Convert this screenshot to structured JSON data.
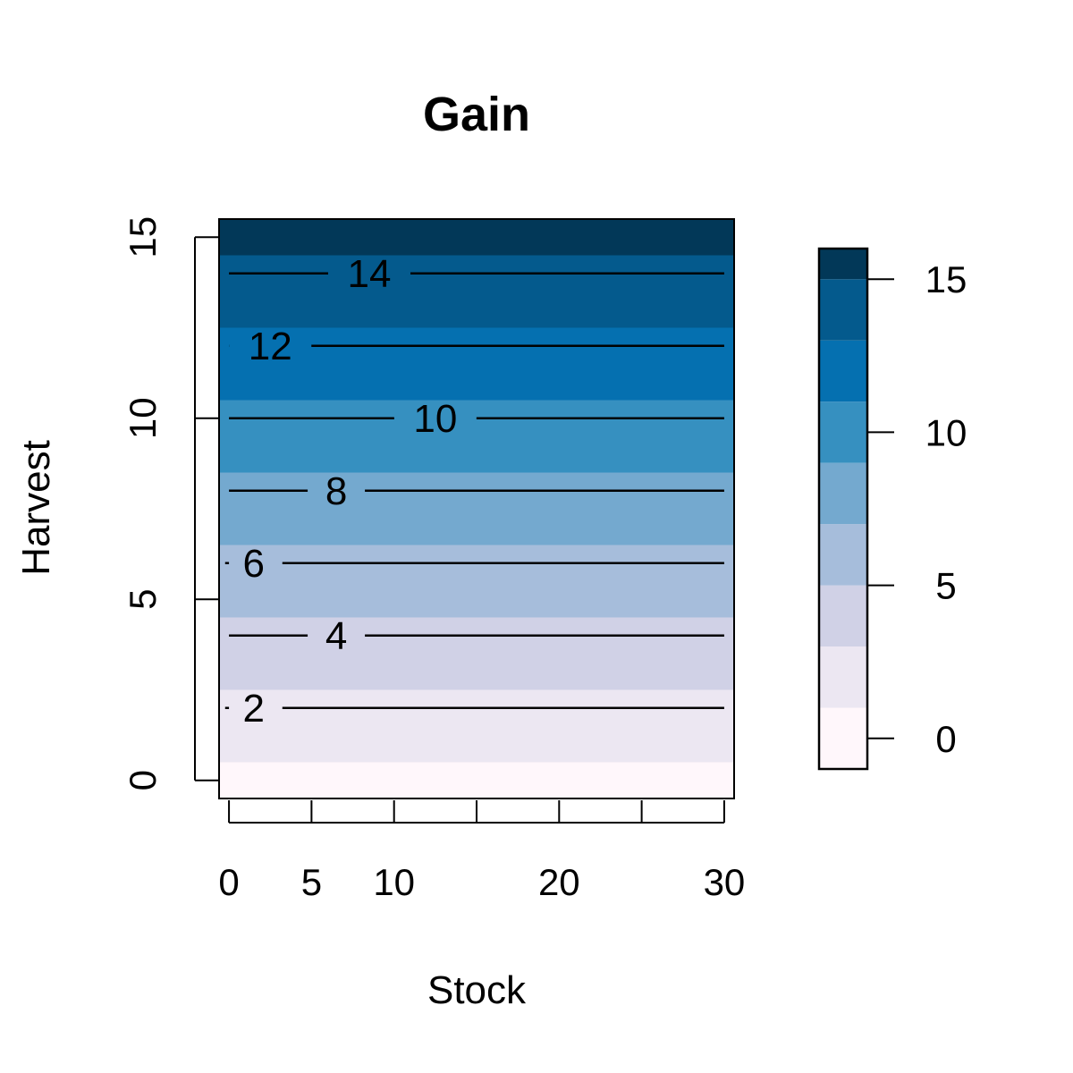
{
  "chart_data": {
    "type": "heatmap",
    "title": "Gain",
    "xlabel": "Stock",
    "ylabel": "Harvest",
    "xlim": [
      -0.6,
      30.6
    ],
    "ylim": [
      -0.5,
      15.5
    ],
    "x_ticks": [
      0,
      5,
      10,
      15,
      20,
      25,
      30
    ],
    "x_tick_labels": [
      "0",
      "5",
      "10",
      "",
      "20",
      "",
      "30"
    ],
    "y_ticks": [
      0,
      5,
      10,
      15
    ],
    "y_tick_labels": [
      "0",
      "5",
      "10",
      "15"
    ],
    "bands": [
      {
        "from": -0.5,
        "to": 0.5,
        "color": "#FFF7FB"
      },
      {
        "from": 0.5,
        "to": 2.5,
        "color": "#ECE7F2"
      },
      {
        "from": 2.5,
        "to": 4.5,
        "color": "#D0D1E6"
      },
      {
        "from": 4.5,
        "to": 6.5,
        "color": "#A6BDDB"
      },
      {
        "from": 6.5,
        "to": 8.5,
        "color": "#74A9CF"
      },
      {
        "from": 8.5,
        "to": 10.5,
        "color": "#3690C0"
      },
      {
        "from": 10.5,
        "to": 12.5,
        "color": "#0570B0"
      },
      {
        "from": 12.5,
        "to": 14.5,
        "color": "#045A8D"
      },
      {
        "from": 14.5,
        "to": 15.5,
        "color": "#023858"
      }
    ],
    "contours": [
      {
        "level": 2,
        "label": "2",
        "label_x": 1.5
      },
      {
        "level": 4,
        "label": "4",
        "label_x": 6.5
      },
      {
        "level": 6,
        "label": "6",
        "label_x": 1.5
      },
      {
        "level": 8,
        "label": "8",
        "label_x": 6.5
      },
      {
        "level": 10,
        "label": "10",
        "label_x": 12.5
      },
      {
        "level": 12,
        "label": "12",
        "label_x": 2.5
      },
      {
        "level": 14,
        "label": "14",
        "label_x": 8.5
      }
    ],
    "legend": {
      "placement": "right",
      "lim": [
        -1,
        16
      ],
      "ticks": [
        0,
        5,
        10,
        15
      ],
      "tick_labels": [
        "0",
        "5",
        "10",
        "15"
      ],
      "bins": [
        {
          "from": -1,
          "to": 1,
          "color": "#FFF7FB"
        },
        {
          "from": 1,
          "to": 3,
          "color": "#ECE7F2"
        },
        {
          "from": 3,
          "to": 5,
          "color": "#D0D1E6"
        },
        {
          "from": 5,
          "to": 7,
          "color": "#A6BDDB"
        },
        {
          "from": 7,
          "to": 9,
          "color": "#74A9CF"
        },
        {
          "from": 9,
          "to": 11,
          "color": "#3690C0"
        },
        {
          "from": 11,
          "to": 13,
          "color": "#0570B0"
        },
        {
          "from": 13,
          "to": 15,
          "color": "#045A8D"
        },
        {
          "from": 15,
          "to": 17,
          "color": "#023858"
        }
      ]
    }
  }
}
